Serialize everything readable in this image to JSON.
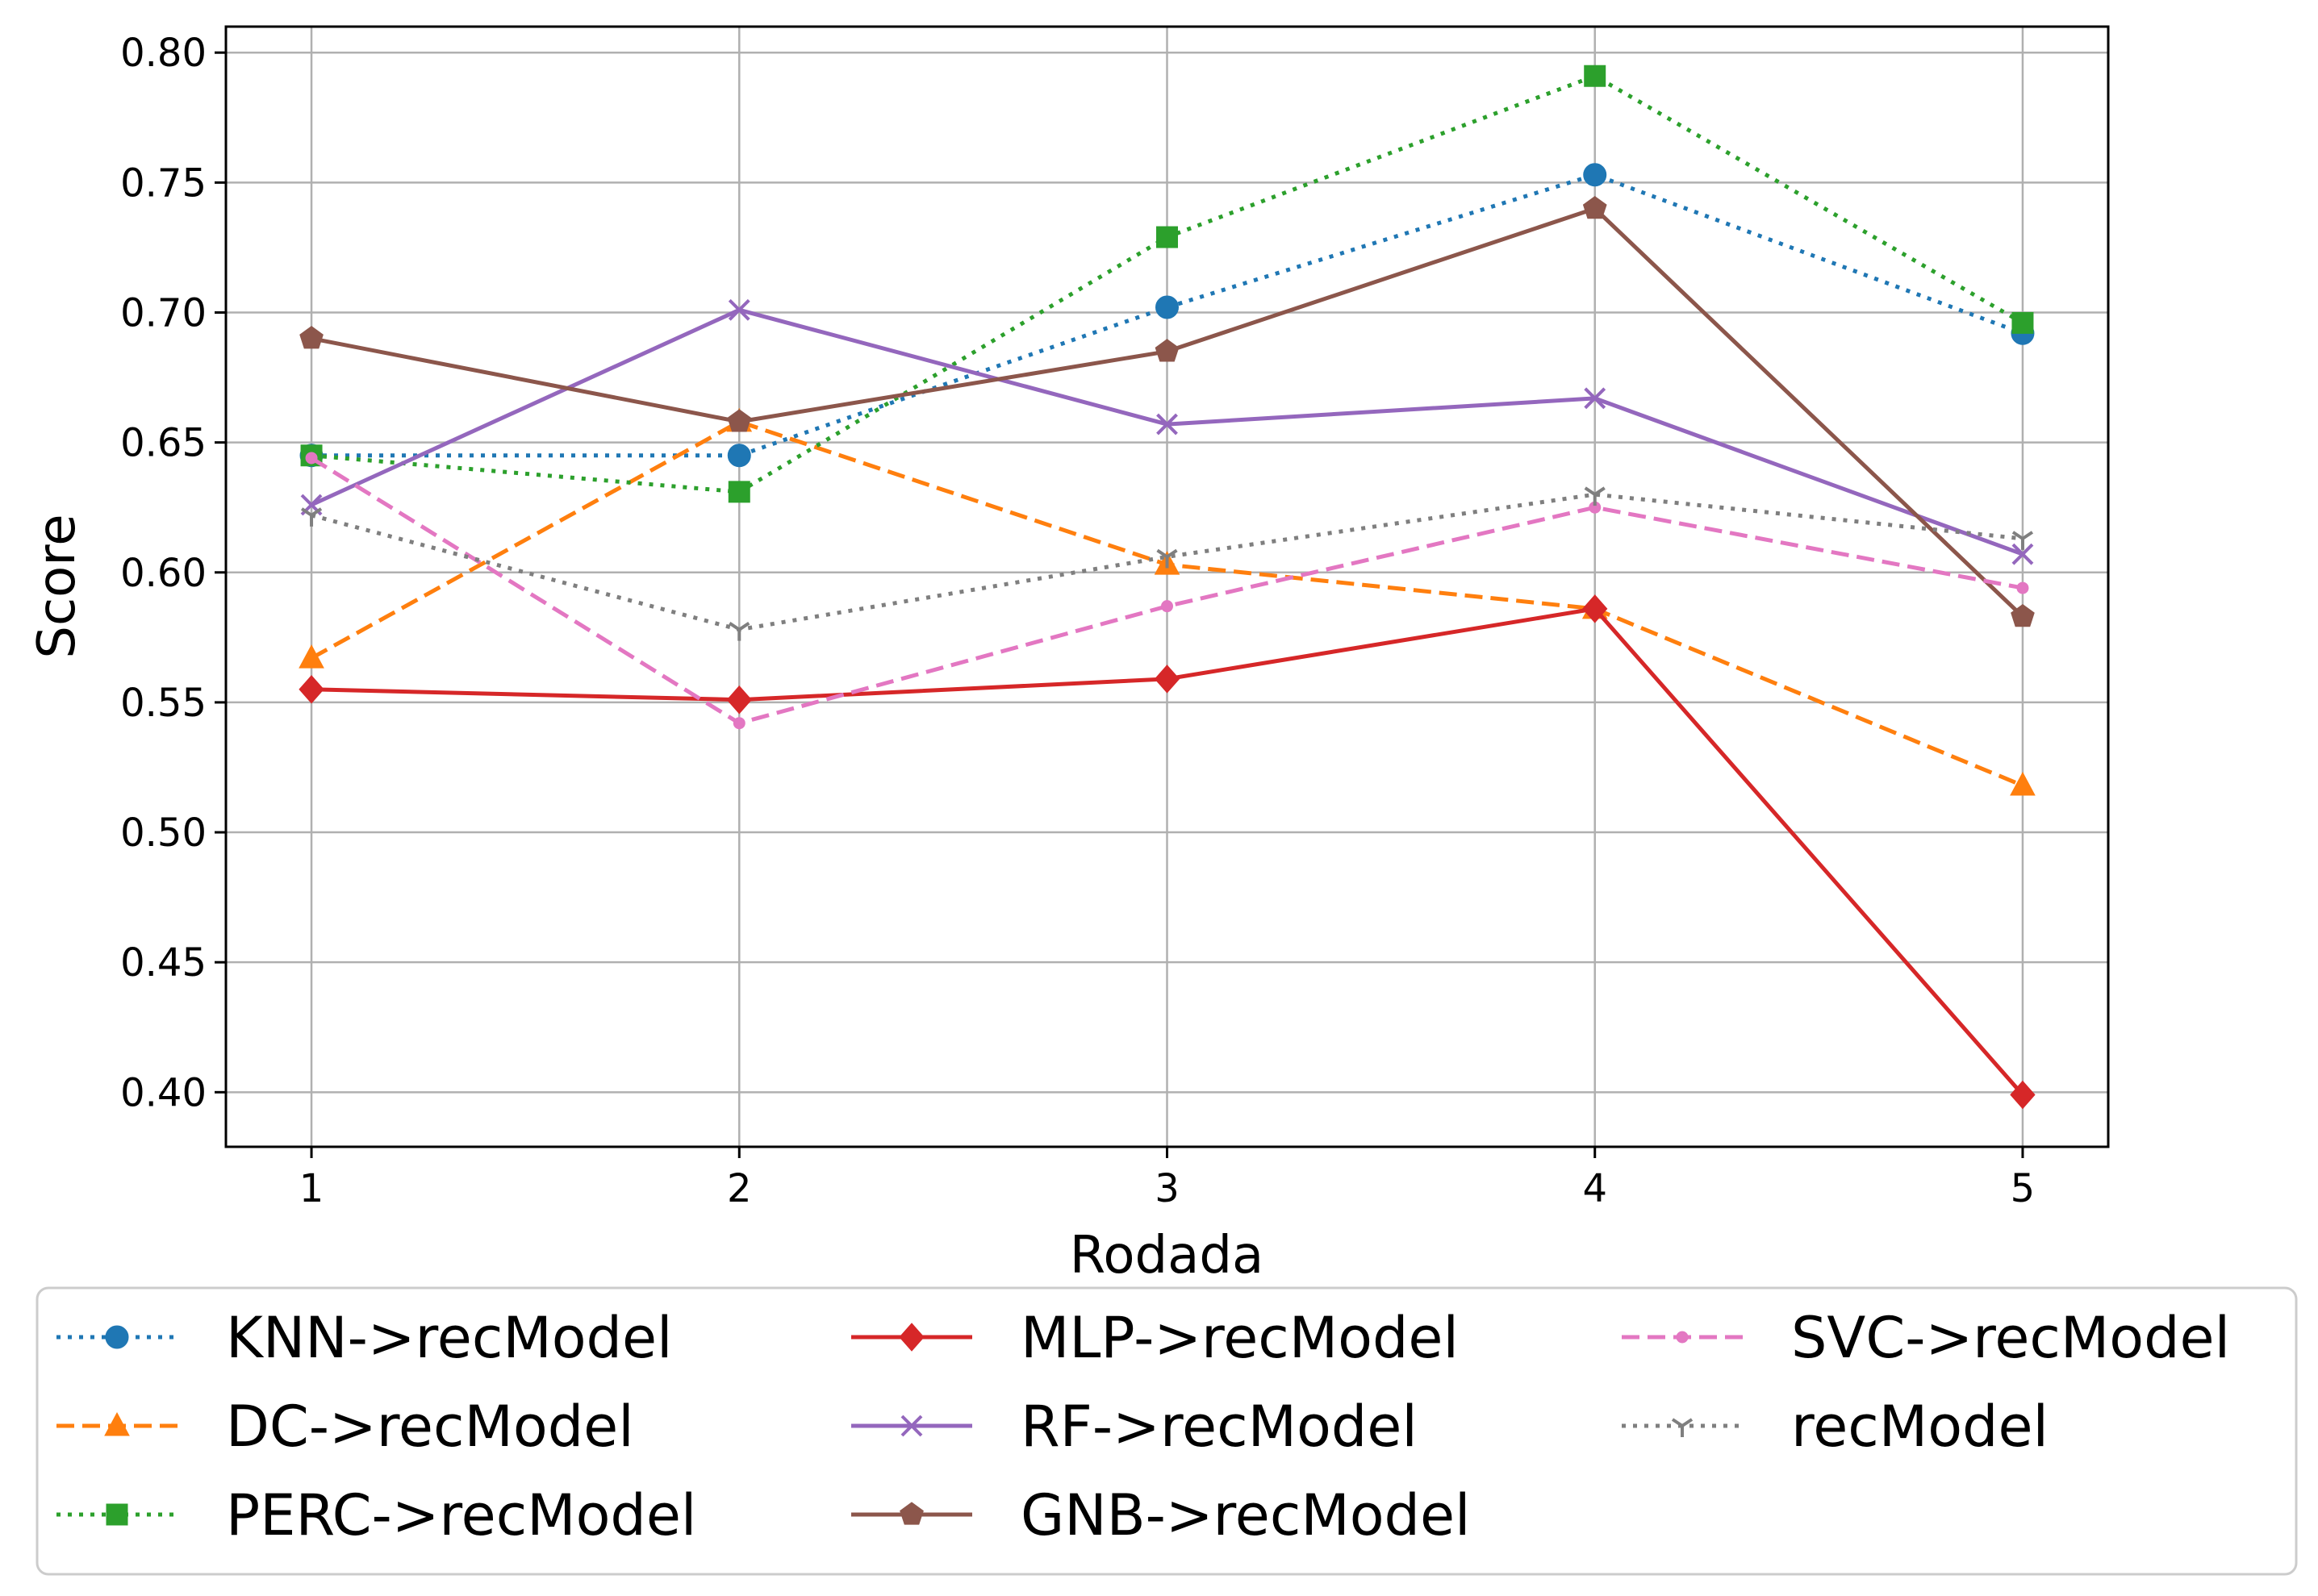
{
  "chart_data": {
    "type": "line",
    "title": "",
    "xlabel": "Rodada",
    "ylabel": "Score",
    "x": [
      1,
      2,
      3,
      4,
      5
    ],
    "xlim": [
      0.8,
      5.2
    ],
    "ylim": [
      0.379,
      0.81
    ],
    "xticks": [
      "1",
      "2",
      "3",
      "4",
      "5"
    ],
    "yticks": [
      "0.40",
      "0.45",
      "0.50",
      "0.55",
      "0.60",
      "0.65",
      "0.70",
      "0.75",
      "0.80"
    ],
    "ytick_values": [
      0.4,
      0.45,
      0.5,
      0.55,
      0.6,
      0.65,
      0.7,
      0.75,
      0.8
    ],
    "grid": true,
    "legend_position": "bottom",
    "series": [
      {
        "name": "KNN->recModel",
        "values": [
          0.645,
          0.645,
          0.702,
          0.753,
          0.692
        ],
        "color": "#1f77b4",
        "dash": "dotted",
        "marker": "circle"
      },
      {
        "name": "DC->recModel",
        "values": [
          0.567,
          0.658,
          0.603,
          0.586,
          0.518
        ],
        "color": "#ff7f0e",
        "dash": "dashed",
        "marker": "triangle"
      },
      {
        "name": "PERC->recModel",
        "values": [
          0.645,
          0.631,
          0.729,
          0.791,
          0.696
        ],
        "color": "#2ca02c",
        "dash": "dotted",
        "marker": "square"
      },
      {
        "name": "MLP->recModel",
        "values": [
          0.555,
          0.551,
          0.559,
          0.586,
          0.399
        ],
        "color": "#d62728",
        "dash": "solid",
        "marker": "diamond"
      },
      {
        "name": "RF->recModel",
        "values": [
          0.626,
          0.701,
          0.657,
          0.667,
          0.607
        ],
        "color": "#9467bd",
        "dash": "solid",
        "marker": "x"
      },
      {
        "name": "GNB->recModel",
        "values": [
          0.69,
          0.658,
          0.685,
          0.74,
          0.583
        ],
        "color": "#8c564b",
        "dash": "solid",
        "marker": "pentagon"
      },
      {
        "name": "SVC->recModel",
        "values": [
          0.644,
          0.542,
          0.587,
          0.625,
          0.594
        ],
        "color": "#e377c2",
        "dash": "dashed",
        "marker": "point"
      },
      {
        "name": "recModel",
        "values": [
          0.622,
          0.578,
          0.606,
          0.63,
          0.613
        ],
        "color": "#7f7f7f",
        "dash": "dotted",
        "marker": "tri_down"
      }
    ]
  }
}
